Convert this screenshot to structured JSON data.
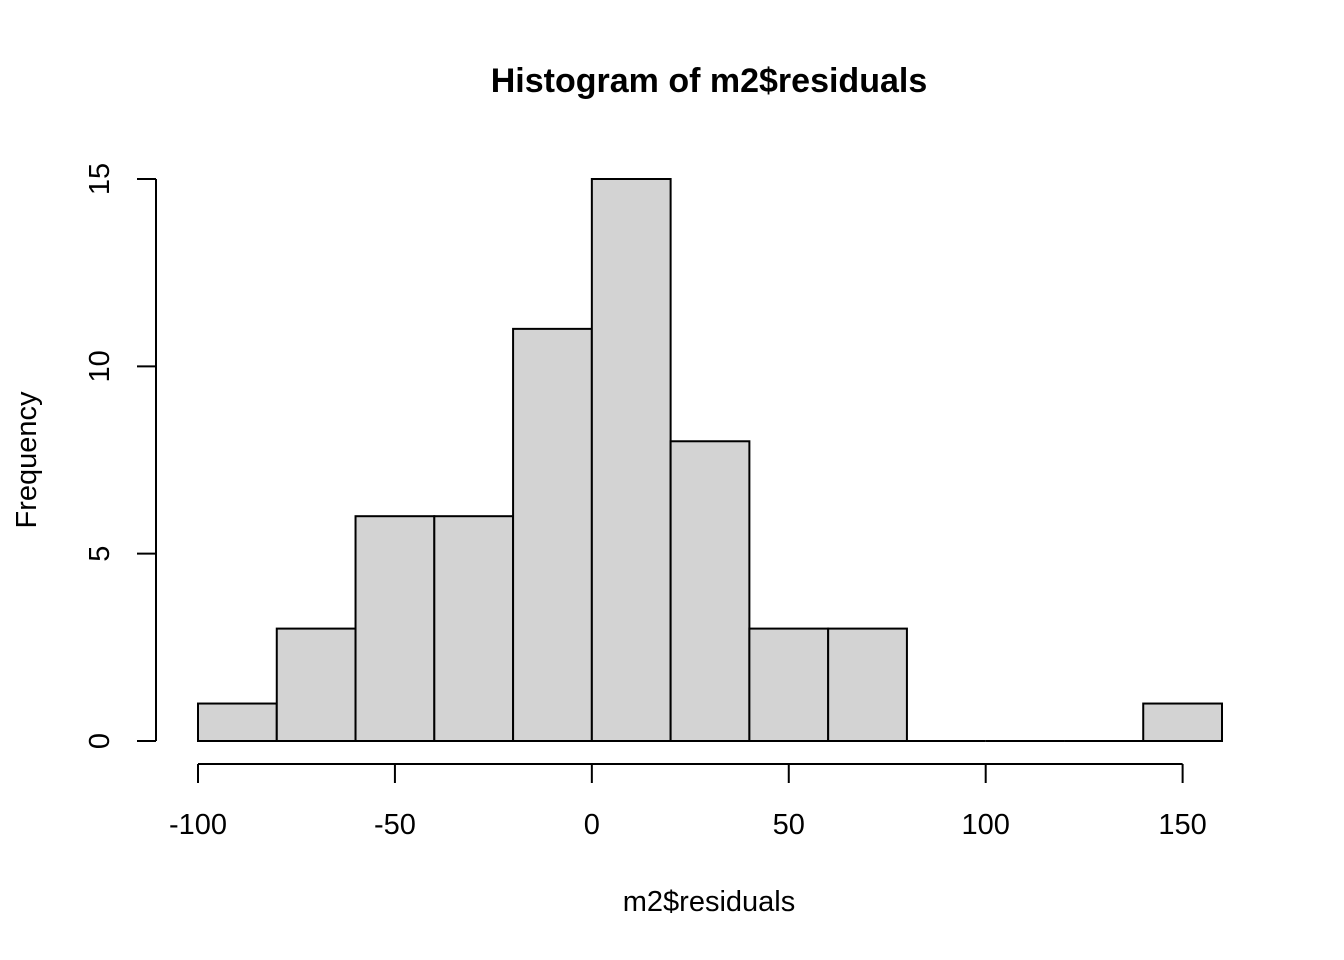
{
  "chart_data": {
    "type": "bar",
    "title": "Histogram of m2$residuals",
    "xlabel": "m2$residuals",
    "ylabel": "Frequency",
    "bins": [
      {
        "start": -100,
        "end": -80,
        "count": 1
      },
      {
        "start": -80,
        "end": -60,
        "count": 3
      },
      {
        "start": -60,
        "end": -40,
        "count": 6
      },
      {
        "start": -40,
        "end": -20,
        "count": 6
      },
      {
        "start": -20,
        "end": 0,
        "count": 11
      },
      {
        "start": 0,
        "end": 20,
        "count": 15
      },
      {
        "start": 20,
        "end": 40,
        "count": 8
      },
      {
        "start": 40,
        "end": 60,
        "count": 3
      },
      {
        "start": 60,
        "end": 80,
        "count": 3
      },
      {
        "start": 80,
        "end": 100,
        "count": 0
      },
      {
        "start": 100,
        "end": 120,
        "count": 0
      },
      {
        "start": 120,
        "end": 140,
        "count": 0
      },
      {
        "start": 140,
        "end": 160,
        "count": 1
      }
    ],
    "x_ticks": [
      -100,
      -50,
      0,
      50,
      100,
      150
    ],
    "y_ticks": [
      0,
      5,
      10,
      15
    ],
    "xlim": [
      -100,
      160
    ],
    "ylim": [
      0,
      15
    ],
    "grid": false,
    "colors": {
      "bar_fill": "#d3d3d3",
      "bar_edge": "#000000"
    }
  }
}
